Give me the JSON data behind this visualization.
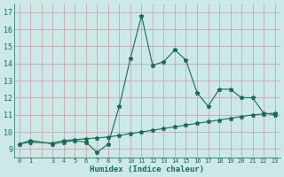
{
  "xlabel": "Humidex (Indice chaleur)",
  "bg_color": "#cce8e8",
  "grid_color": "#cc9999",
  "line_color": "#1a6b5a",
  "line1_x": [
    0,
    1,
    3,
    4,
    5,
    6,
    7,
    8,
    9,
    10,
    11,
    12,
    13,
    14,
    15,
    16,
    17,
    18,
    19,
    20,
    21,
    22,
    23
  ],
  "line1_y": [
    9.3,
    9.5,
    9.3,
    9.4,
    9.5,
    9.4,
    8.8,
    9.3,
    11.5,
    14.3,
    16.8,
    13.9,
    14.1,
    14.8,
    14.2,
    12.3,
    11.5,
    12.5,
    12.5,
    12.0,
    12.0,
    11.1,
    11.0
  ],
  "line2_x": [
    0,
    1,
    3,
    4,
    5,
    6,
    7,
    8,
    9,
    10,
    11,
    12,
    13,
    14,
    15,
    16,
    17,
    18,
    19,
    20,
    21,
    22,
    23
  ],
  "line2_y": [
    9.3,
    9.4,
    9.35,
    9.5,
    9.55,
    9.6,
    9.65,
    9.7,
    9.8,
    9.9,
    10.0,
    10.1,
    10.2,
    10.3,
    10.4,
    10.5,
    10.6,
    10.7,
    10.8,
    10.9,
    11.0,
    11.05,
    11.1
  ],
  "ylim": [
    8.5,
    17.5
  ],
  "yticks": [
    9,
    10,
    11,
    12,
    13,
    14,
    15,
    16,
    17
  ],
  "xtick_labels": [
    "0",
    "1",
    "",
    "3",
    "4",
    "5",
    "6",
    "7",
    "8",
    "9",
    "10",
    "11",
    "12",
    "13",
    "14",
    "15",
    "16",
    "17",
    "18",
    "19",
    "20",
    "21",
    "22",
    "23"
  ],
  "xtick_positions": [
    0,
    1,
    2,
    3,
    4,
    5,
    6,
    7,
    8,
    9,
    10,
    11,
    12,
    13,
    14,
    15,
    16,
    17,
    18,
    19,
    20,
    21,
    22,
    23
  ],
  "xlim": [
    -0.5,
    23.5
  ],
  "marker": "*",
  "marker_size": 3.5,
  "linewidth": 0.8
}
